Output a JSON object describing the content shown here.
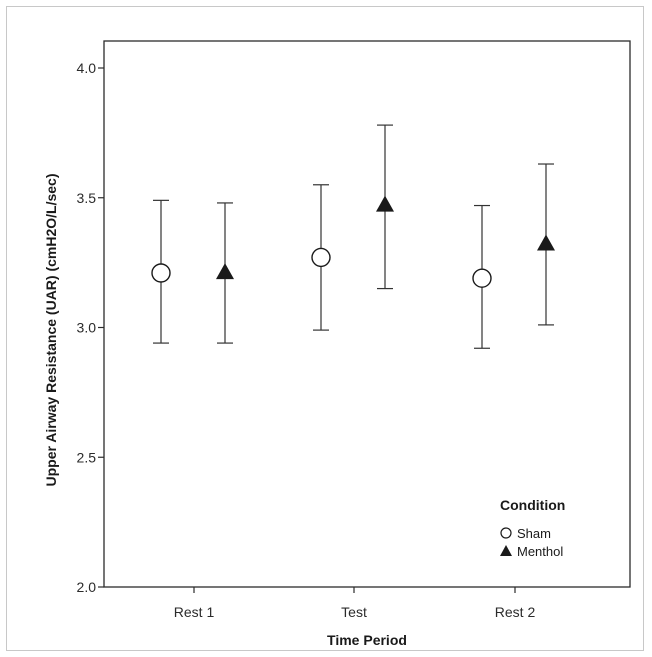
{
  "chart_data": {
    "type": "scatter",
    "title": "",
    "xlabel": "Time Period",
    "ylabel": "Upper Airway Resistance (UAR) (cmH2O/L/sec)",
    "categories": [
      "Rest 1",
      "Test",
      "Rest 2"
    ],
    "ylim": [
      2.0,
      4.0
    ],
    "yticks": [
      "2.0",
      "2.5",
      "3.0",
      "3.5",
      "4.0"
    ],
    "grid": false,
    "legend_position": "bottom-right",
    "legend_title": "Condition",
    "series": [
      {
        "name": "Sham",
        "marker": "open-circle",
        "values": [
          3.21,
          3.27,
          3.19
        ],
        "lower": [
          2.94,
          2.99,
          2.92
        ],
        "upper": [
          3.49,
          3.55,
          3.47
        ]
      },
      {
        "name": "Menthol",
        "marker": "filled-triangle",
        "values": [
          3.21,
          3.47,
          3.32
        ],
        "lower": [
          2.94,
          3.15,
          3.01
        ],
        "upper": [
          3.48,
          3.78,
          3.63
        ]
      }
    ],
    "colors": {
      "axis": "#2b2b2b",
      "errorbar": "#333333",
      "marker_fill_sham": "#ffffff",
      "marker_fill_menthol": "#1a1a1a"
    }
  }
}
